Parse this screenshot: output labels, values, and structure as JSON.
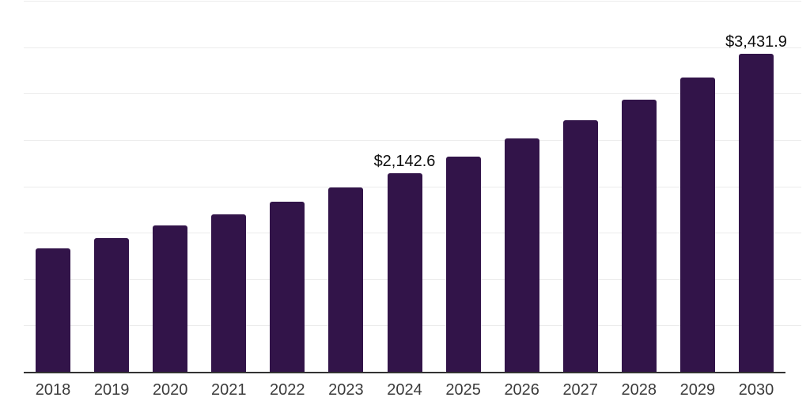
{
  "chart_data": {
    "type": "bar",
    "title": "",
    "xlabel": "",
    "ylabel": "",
    "categories": [
      "2018",
      "2019",
      "2020",
      "2021",
      "2022",
      "2023",
      "2024",
      "2025",
      "2026",
      "2027",
      "2028",
      "2029",
      "2030"
    ],
    "values": [
      1334,
      1441,
      1575,
      1696,
      1838,
      1986,
      2142.6,
      2321,
      2519,
      2717,
      2939,
      3177,
      3431.9
    ],
    "point_labels": [
      "",
      "",
      "",
      "",
      "",
      "",
      "$2,142.6",
      "",
      "",
      "",
      "",
      "",
      "$3,431.9"
    ],
    "ylim": [
      0,
      4000
    ],
    "gridline_interval": 500,
    "grid": "horizontal",
    "legend": "none",
    "y_axis_tick_labels_visible": false,
    "colors": {
      "bar": "#321449",
      "axis_line": "#333333",
      "gridline": "#ececec",
      "tick_label": "#3b3b3b",
      "data_label": "#0d0d0d",
      "background": "#ffffff"
    }
  }
}
